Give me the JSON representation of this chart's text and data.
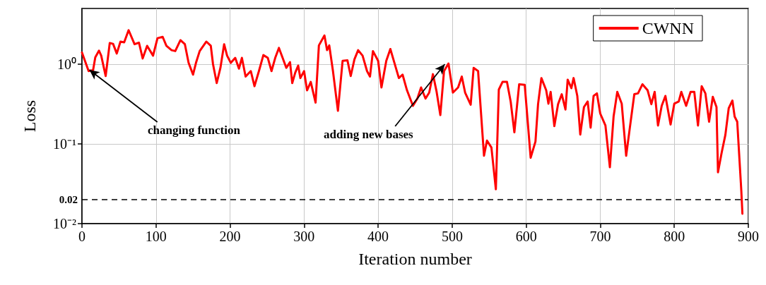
{
  "chart_data": {
    "type": "line",
    "xlabel": "Iteration number",
    "ylabel": "Loss",
    "x": [
      0,
      9,
      15,
      18,
      23,
      26,
      32,
      37.5,
      42,
      47,
      52,
      57,
      63,
      71,
      77,
      82,
      88,
      96,
      102,
      109,
      114,
      121,
      126,
      133,
      139,
      144,
      150,
      154,
      159,
      168,
      174,
      177,
      182,
      187,
      192,
      196,
      201,
      207,
      212,
      216,
      221,
      228,
      233,
      239,
      245,
      251,
      256,
      261,
      266,
      271,
      276,
      281,
      284,
      288,
      292,
      295,
      300,
      304,
      309,
      315.5,
      320,
      327.5,
      331,
      334,
      339,
      345.7,
      352,
      358.5,
      363,
      368,
      373,
      379,
      385,
      389,
      393,
      400,
      404.5,
      411,
      416.5,
      422,
      428,
      433,
      439,
      447,
      453,
      458,
      464,
      469,
      474,
      479,
      484,
      489,
      495,
      501,
      508,
      513,
      517.5,
      525,
      529,
      535,
      543,
      547,
      553,
      559,
      563,
      568,
      574,
      579,
      584,
      590.5,
      598,
      606,
      612.5,
      616,
      620.5,
      627,
      630,
      633,
      638,
      643,
      648,
      653,
      656,
      661,
      664,
      669,
      673,
      678,
      683,
      687,
      691,
      695.5,
      700,
      707,
      713,
      718,
      723,
      729,
      735,
      740,
      746,
      751,
      757,
      764,
      769,
      773.5,
      778,
      783,
      788,
      795,
      800,
      806,
      809.5,
      816,
      822,
      827,
      832,
      837,
      842,
      847,
      852,
      857,
      859,
      864,
      869,
      873.5,
      878.5,
      881.5,
      885,
      890.5,
      892
    ],
    "series": [
      {
        "name": "CWNN",
        "color": "#ff0000",
        "values": [
          1.4,
          0.82,
          0.84,
          1.22,
          1.48,
          1.28,
          0.71,
          1.84,
          1.8,
          1.36,
          1.92,
          1.88,
          2.67,
          1.78,
          1.86,
          1.18,
          1.7,
          1.28,
          2.12,
          2.2,
          1.7,
          1.5,
          1.46,
          2.0,
          1.78,
          1.04,
          0.74,
          1.04,
          1.46,
          1.92,
          1.7,
          1.0,
          0.58,
          0.9,
          1.78,
          1.28,
          1.04,
          1.2,
          0.88,
          1.2,
          0.7,
          0.82,
          0.53,
          0.82,
          1.3,
          1.2,
          0.82,
          1.2,
          1.6,
          1.2,
          0.9,
          1.06,
          0.58,
          0.78,
          0.96,
          0.67,
          0.82,
          0.47,
          0.6,
          0.33,
          1.72,
          2.29,
          1.5,
          1.72,
          0.82,
          0.26,
          1.1,
          1.12,
          0.71,
          1.15,
          1.5,
          1.28,
          0.82,
          0.7,
          1.46,
          1.1,
          0.51,
          1.1,
          1.55,
          1.04,
          0.67,
          0.74,
          0.47,
          0.3,
          0.37,
          0.51,
          0.37,
          0.44,
          0.75,
          0.45,
          0.23,
          0.82,
          1.02,
          0.44,
          0.51,
          0.7,
          0.44,
          0.31,
          0.9,
          0.82,
          0.071,
          0.11,
          0.09,
          0.027,
          0.48,
          0.6,
          0.6,
          0.34,
          0.14,
          0.56,
          0.55,
          0.067,
          0.107,
          0.315,
          0.67,
          0.47,
          0.32,
          0.45,
          0.167,
          0.315,
          0.42,
          0.27,
          0.64,
          0.5,
          0.67,
          0.4,
          0.131,
          0.29,
          0.34,
          0.16,
          0.4,
          0.43,
          0.24,
          0.17,
          0.051,
          0.22,
          0.45,
          0.32,
          0.071,
          0.16,
          0.42,
          0.43,
          0.56,
          0.47,
          0.315,
          0.45,
          0.17,
          0.3,
          0.4,
          0.175,
          0.32,
          0.34,
          0.45,
          0.3,
          0.45,
          0.45,
          0.17,
          0.53,
          0.43,
          0.19,
          0.39,
          0.29,
          0.044,
          0.078,
          0.13,
          0.28,
          0.35,
          0.22,
          0.19,
          0.026,
          0.0133
        ]
      }
    ],
    "xlim": [
      0,
      900
    ],
    "xticks": [
      0,
      100,
      200,
      300,
      400,
      500,
      600,
      700,
      800,
      900
    ],
    "ylim": [
      0.01,
      5
    ],
    "yticks": [
      {
        "value": 1,
        "label": "10⁰"
      },
      {
        "value": 0.1,
        "label": "10⁻¹"
      },
      {
        "value": 0.01,
        "label": "10⁻²"
      }
    ],
    "log": "y",
    "grid": true,
    "legend": "top right",
    "marker": "none",
    "line_style": "solid",
    "ref_lines": [
      {
        "axis": "y",
        "value": 0.02,
        "label": "0.02",
        "color": "#000000",
        "line_style": "dashed"
      }
    ],
    "annotations": [
      {
        "text": "changing function",
        "x": 10,
        "y": 0.85
      },
      {
        "text": "adding new bases",
        "x": 490,
        "y": 1.0
      }
    ]
  }
}
